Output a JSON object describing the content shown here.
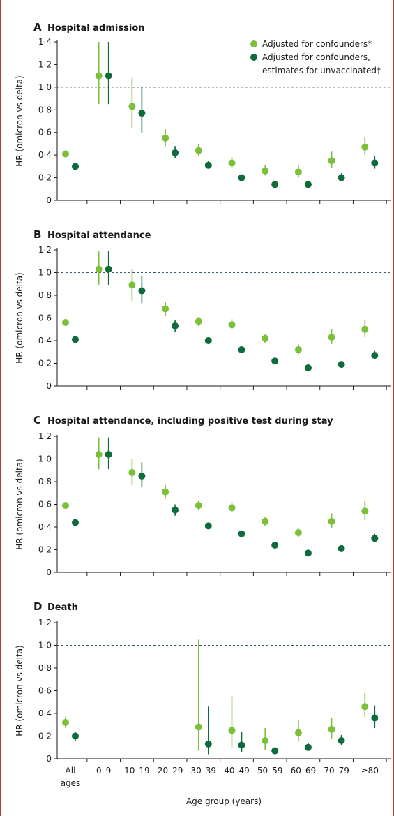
{
  "colors": {
    "light": "#7bbf3a",
    "dark": "#0e6b3b",
    "axis": "#1a1a1a",
    "ref": "#3a5a6a"
  },
  "legend": [
    {
      "key": "light",
      "lines": [
        "Adjusted for confounders*"
      ]
    },
    {
      "key": "dark",
      "lines": [
        "Adjusted for confounders,",
        "estimates for unvaccinated†"
      ]
    }
  ],
  "x_axis": {
    "title": "Age group (years)",
    "categories": [
      [
        "All",
        "ages"
      ],
      [
        "0–9"
      ],
      [
        "10–19"
      ],
      [
        "20–29"
      ],
      [
        "30–39"
      ],
      [
        "40–49"
      ],
      [
        "50–59"
      ],
      [
        "60–69"
      ],
      [
        "70–79"
      ],
      [
        "≥80"
      ]
    ]
  },
  "chart_data": [
    {
      "type": "scatter",
      "panel": "A",
      "title": "Hospital admission",
      "ylabel": "HR (omicron vs delta)",
      "ylim": [
        0,
        1.4
      ],
      "yticks": [
        0,
        0.2,
        0.4,
        0.6,
        0.8,
        1.0,
        1.2,
        1.4
      ],
      "ytick_labels": [
        "0",
        "0·2",
        "0·4",
        "0·6",
        "0·8",
        "1·0",
        "1·2",
        "1·4"
      ],
      "reference_line": 1.0,
      "series": [
        {
          "key": "light",
          "values": [
            0.41,
            1.1,
            0.83,
            0.55,
            0.44,
            0.33,
            0.26,
            0.25,
            0.35,
            0.47
          ],
          "lower": [
            0.4,
            0.85,
            0.64,
            0.48,
            0.39,
            0.29,
            0.22,
            0.2,
            0.29,
            0.4
          ],
          "upper": [
            0.42,
            1.4,
            1.08,
            0.63,
            0.5,
            0.38,
            0.31,
            0.31,
            0.43,
            0.56
          ]
        },
        {
          "key": "dark",
          "values": [
            0.3,
            1.1,
            0.77,
            0.42,
            0.31,
            0.2,
            0.14,
            0.14,
            0.2,
            0.33
          ],
          "lower": [
            0.29,
            0.85,
            0.6,
            0.37,
            0.28,
            0.18,
            0.13,
            0.13,
            0.17,
            0.28
          ],
          "upper": [
            0.31,
            1.4,
            1.0,
            0.48,
            0.35,
            0.22,
            0.16,
            0.16,
            0.24,
            0.39
          ]
        }
      ]
    },
    {
      "type": "scatter",
      "panel": "B",
      "title": "Hospital attendance",
      "ylabel": "HR (omicron vs delta)",
      "ylim": [
        0,
        1.2
      ],
      "yticks": [
        0,
        0.2,
        0.4,
        0.6,
        0.8,
        1.0,
        1.2
      ],
      "ytick_labels": [
        "0",
        "0·2",
        "0·4",
        "0·6",
        "0·8",
        "1·0",
        "1·2"
      ],
      "reference_line": 1.0,
      "series": [
        {
          "key": "light",
          "values": [
            0.56,
            1.03,
            0.89,
            0.68,
            0.57,
            0.54,
            0.42,
            0.32,
            0.43,
            0.5
          ],
          "lower": [
            0.55,
            0.89,
            0.75,
            0.62,
            0.53,
            0.5,
            0.38,
            0.28,
            0.37,
            0.43
          ],
          "upper": [
            0.57,
            1.19,
            1.03,
            0.74,
            0.61,
            0.59,
            0.46,
            0.37,
            0.5,
            0.58
          ]
        },
        {
          "key": "dark",
          "values": [
            0.41,
            1.03,
            0.84,
            0.53,
            0.4,
            0.32,
            0.22,
            0.16,
            0.19,
            0.27
          ],
          "lower": [
            0.4,
            0.89,
            0.73,
            0.48,
            0.38,
            0.3,
            0.2,
            0.14,
            0.17,
            0.24
          ],
          "upper": [
            0.42,
            1.19,
            0.97,
            0.58,
            0.42,
            0.34,
            0.24,
            0.18,
            0.21,
            0.31
          ]
        }
      ]
    },
    {
      "type": "scatter",
      "panel": "C",
      "title": "Hospital attendance, including positive test during stay",
      "ylabel": "HR (omicron vs delta)",
      "ylim": [
        0,
        1.2
      ],
      "yticks": [
        0,
        0.2,
        0.4,
        0.6,
        0.8,
        1.0,
        1.2
      ],
      "ytick_labels": [
        "0",
        "0·2",
        "0·4",
        "0·6",
        "0·8",
        "1·0",
        "1·2"
      ],
      "reference_line": 1.0,
      "series": [
        {
          "key": "light",
          "values": [
            0.59,
            1.04,
            0.88,
            0.71,
            0.59,
            0.57,
            0.45,
            0.35,
            0.45,
            0.54
          ],
          "lower": [
            0.58,
            0.91,
            0.77,
            0.65,
            0.55,
            0.53,
            0.41,
            0.31,
            0.39,
            0.46
          ],
          "upper": [
            0.6,
            1.19,
            1.0,
            0.77,
            0.63,
            0.62,
            0.49,
            0.39,
            0.52,
            0.63
          ]
        },
        {
          "key": "dark",
          "values": [
            0.44,
            1.04,
            0.85,
            0.55,
            0.41,
            0.34,
            0.24,
            0.17,
            0.21,
            0.3
          ],
          "lower": [
            0.43,
            0.91,
            0.75,
            0.5,
            0.39,
            0.32,
            0.22,
            0.15,
            0.19,
            0.27
          ],
          "upper": [
            0.45,
            1.19,
            0.97,
            0.6,
            0.43,
            0.36,
            0.26,
            0.19,
            0.23,
            0.34
          ]
        }
      ]
    },
    {
      "type": "scatter",
      "panel": "D",
      "title": "Death",
      "ylabel": "HR (omicron vs delta)",
      "ylim": [
        0,
        1.2
      ],
      "yticks": [
        0,
        0.2,
        0.4,
        0.6,
        0.8,
        1.0,
        1.2
      ],
      "ytick_labels": [
        "0",
        "0·2",
        "0·4",
        "0·6",
        "0·8",
        "1·0",
        "1·2"
      ],
      "reference_line": 1.0,
      "series": [
        {
          "key": "light",
          "values": [
            0.32,
            null,
            null,
            null,
            0.28,
            0.25,
            0.16,
            0.23,
            0.26,
            0.46
          ],
          "lower": [
            0.27,
            null,
            null,
            null,
            0.07,
            0.1,
            0.08,
            0.15,
            0.18,
            0.37
          ],
          "upper": [
            0.37,
            null,
            null,
            null,
            1.05,
            0.55,
            0.27,
            0.34,
            0.36,
            0.58
          ]
        },
        {
          "key": "dark",
          "values": [
            0.2,
            null,
            null,
            null,
            0.13,
            0.12,
            0.07,
            0.1,
            0.16,
            0.36
          ],
          "lower": [
            0.16,
            null,
            null,
            null,
            0.04,
            0.06,
            0.05,
            0.07,
            0.12,
            0.27
          ],
          "upper": [
            0.24,
            null,
            null,
            null,
            0.46,
            0.24,
            0.1,
            0.14,
            0.21,
            0.47
          ]
        }
      ]
    }
  ]
}
